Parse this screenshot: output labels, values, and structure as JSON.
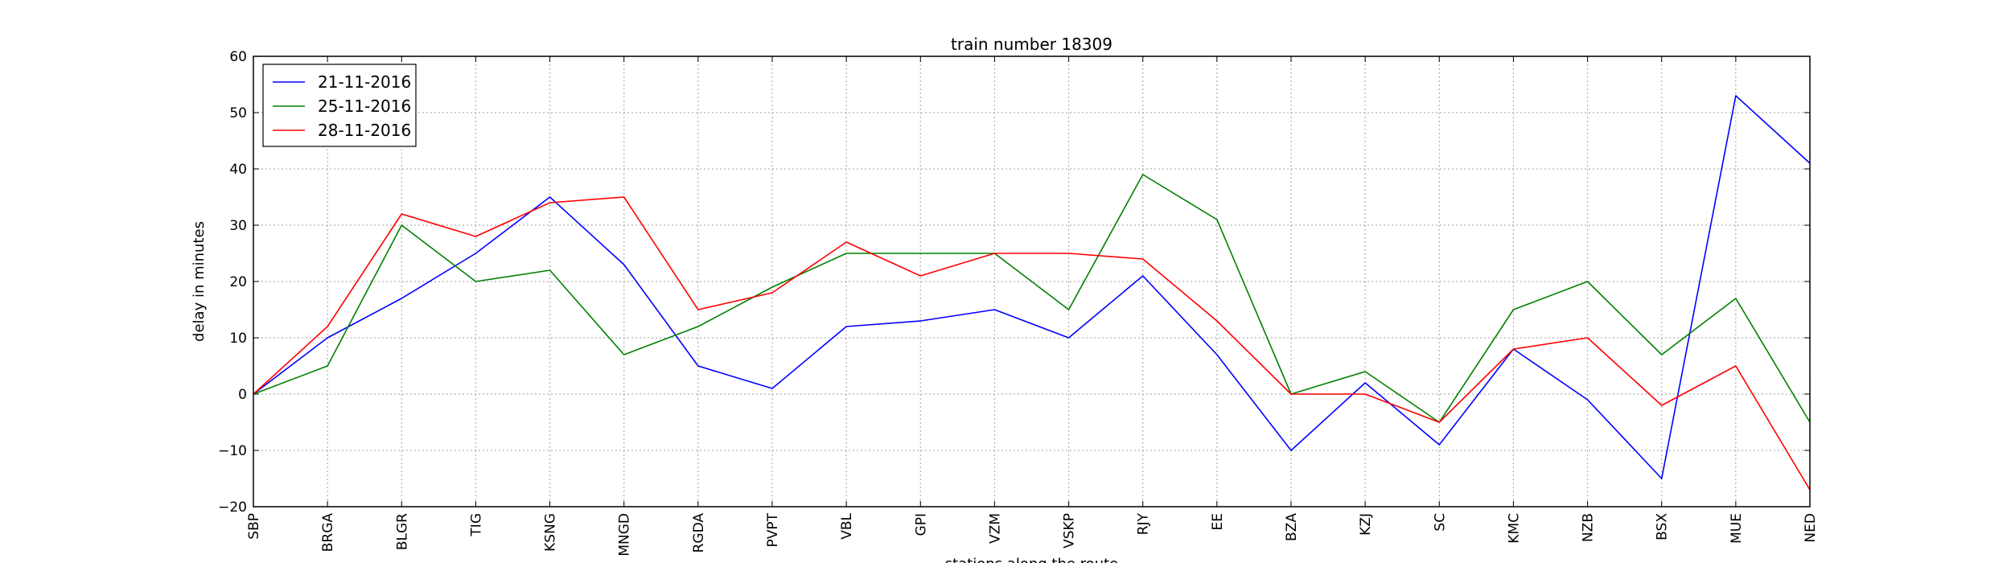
{
  "chart_data": {
    "type": "line",
    "title": "train number 18309",
    "xlabel": "stations along the route",
    "ylabel": "delay in minutes",
    "categories": [
      "SBP",
      "BRGA",
      "BLGR",
      "TIG",
      "KSNG",
      "MNGD",
      "RGDA",
      "PVPT",
      "VBL",
      "GPI",
      "VZM",
      "VSKP",
      "RJY",
      "EE",
      "BZA",
      "KZJ",
      "SC",
      "KMC",
      "NZB",
      "BSX",
      "MUE",
      "NED"
    ],
    "ylim": [
      -20,
      60
    ],
    "yticks": [
      -20,
      -10,
      0,
      10,
      20,
      30,
      40,
      50,
      60
    ],
    "grid": true,
    "legend_position": "top-left",
    "series": [
      {
        "name": "21-11-2016",
        "color": "#0000ff",
        "values": [
          0,
          10,
          17,
          25,
          35,
          23,
          5,
          1,
          12,
          13,
          15,
          10,
          21,
          7,
          -10,
          2,
          -9,
          8,
          -1,
          -15,
          53,
          41
        ]
      },
      {
        "name": "25-11-2016",
        "color": "#008000",
        "values": [
          0,
          5,
          30,
          20,
          22,
          7,
          12,
          19,
          25,
          25,
          25,
          15,
          39,
          31,
          0,
          4,
          -5,
          15,
          20,
          7,
          17,
          -5
        ]
      },
      {
        "name": "28-11-2016",
        "color": "#ff0000",
        "values": [
          0,
          12,
          32,
          28,
          34,
          35,
          15,
          18,
          27,
          21,
          25,
          25,
          24,
          13,
          0,
          0,
          -5,
          8,
          10,
          -2,
          5,
          -17
        ]
      }
    ]
  }
}
